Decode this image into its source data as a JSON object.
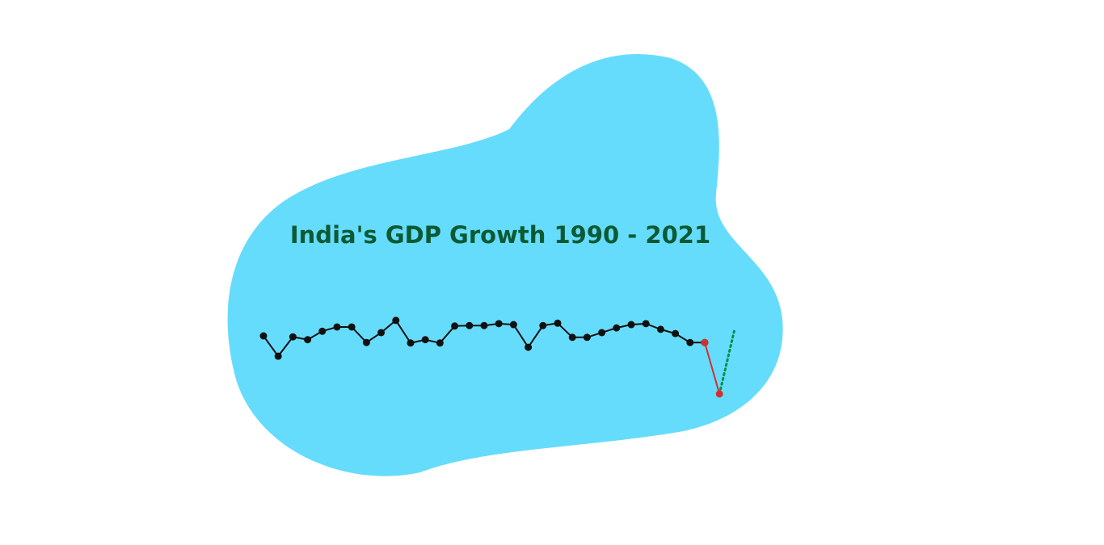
{
  "chart_data": {
    "type": "line",
    "title": "India's GDP Growth  1990 - 2021",
    "series": [
      {
        "color": "#111111",
        "markers": true,
        "style": "solid",
        "values": [
          5.3,
          1.0,
          5.1,
          4.5,
          6.3,
          7.2,
          7.2,
          3.9,
          6.0,
          8.6,
          3.8,
          4.5,
          3.8,
          7.4,
          7.5,
          7.5,
          7.9,
          7.7,
          2.9,
          7.5,
          8.0,
          5.0,
          5.0,
          6.0,
          7.0,
          7.7,
          7.9,
          6.7,
          5.8,
          3.9,
          3.9,
          null,
          null
        ]
      },
      {
        "color": "#d32f2f",
        "markers": true,
        "style": "solid",
        "values": [
          null,
          null,
          null,
          null,
          null,
          null,
          null,
          null,
          null,
          null,
          null,
          null,
          null,
          null,
          null,
          null,
          null,
          null,
          null,
          null,
          null,
          null,
          null,
          null,
          null,
          null,
          null,
          null,
          null,
          null,
          3.9,
          -7.0,
          null
        ]
      },
      {
        "color": "#0a8f4a",
        "markers": false,
        "style": "dotted",
        "values": [
          null,
          null,
          null,
          null,
          null,
          null,
          null,
          null,
          null,
          null,
          null,
          null,
          null,
          null,
          null,
          null,
          null,
          null,
          null,
          null,
          null,
          null,
          null,
          null,
          null,
          null,
          null,
          null,
          null,
          null,
          null,
          -7.0,
          6.3
        ]
      }
    ]
  }
}
